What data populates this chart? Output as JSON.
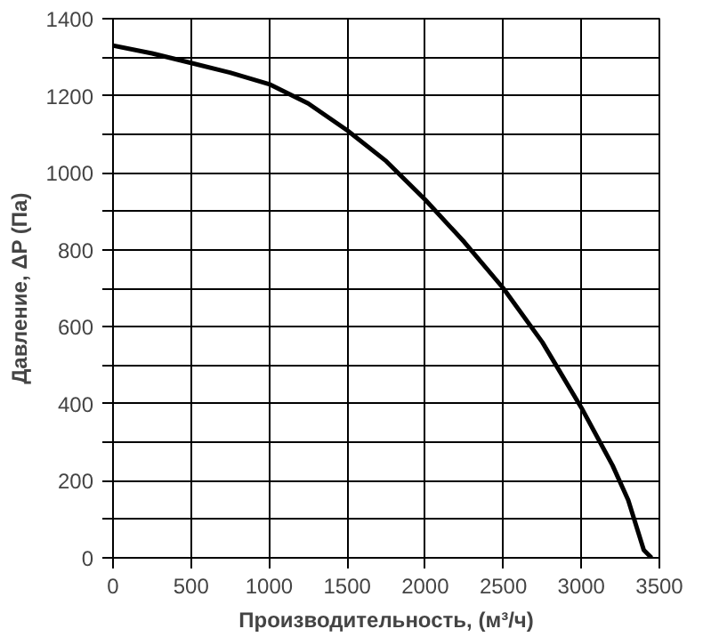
{
  "chart_data": {
    "type": "line",
    "xlabel": "Производительность, (м³/ч)",
    "ylabel": "Давление, ΔP (Па)",
    "x": [
      0,
      250,
      500,
      750,
      1000,
      1250,
      1500,
      1750,
      2000,
      2250,
      2500,
      2750,
      3000,
      3200,
      3300,
      3400,
      3450
    ],
    "series": [
      {
        "color": "#000000",
        "values": [
          1330,
          1310,
          1285,
          1260,
          1230,
          1180,
          1110,
          1030,
          930,
          820,
          700,
          560,
          390,
          240,
          150,
          20,
          0
        ]
      }
    ],
    "xlim": [
      0,
      3500
    ],
    "xticks": [
      0,
      500,
      1000,
      1500,
      2000,
      2500,
      3000,
      3500
    ],
    "ylim": [
      0,
      1400
    ],
    "yticks": [
      0,
      {
        "value": 100,
        "label": null
      },
      200,
      {
        "value": 300,
        "label": null
      },
      400,
      {
        "value": 500,
        "label": null
      },
      600,
      {
        "value": 700,
        "label": null
      },
      800,
      {
        "value": 900,
        "label": null
      },
      1000,
      {
        "value": 1100,
        "label": null
      },
      1200,
      {
        "value": 1300,
        "label": null
      },
      1400
    ],
    "grid": true,
    "marker": "none",
    "line_style": "solid"
  }
}
